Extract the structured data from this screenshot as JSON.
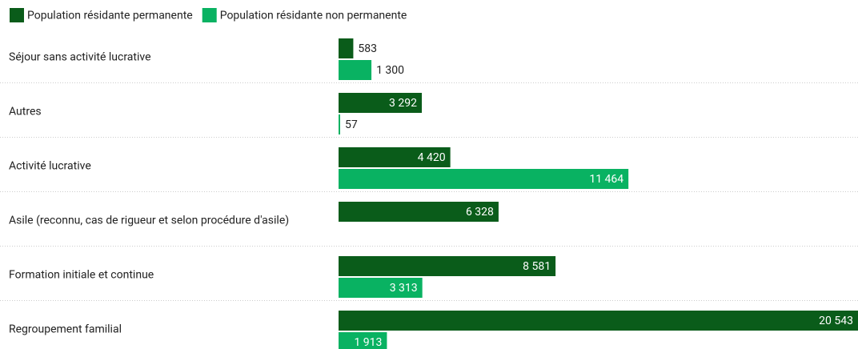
{
  "chart_data": {
    "type": "hbar",
    "categories": [
      "Séjour sans activité lucrative",
      "Autres",
      "Activité lucrative",
      "Asile (reconnu, cas de rigueur et selon procédure d'asile)",
      "Formation initiale et continue",
      "Regroupement familial"
    ],
    "series": [
      {
        "name": "Population résidante permanente",
        "color": "#0a5c1a",
        "values": [
          583,
          3292,
          4420,
          6328,
          8581,
          20543
        ],
        "value_labels": [
          "583",
          "3 292",
          "4 420",
          "6 328",
          "8 581",
          "20 543"
        ]
      },
      {
        "name": "Population résidante non permanente",
        "color": "#09b262",
        "values": [
          1300,
          57,
          11464,
          null,
          3313,
          1913
        ],
        "value_labels": [
          "1 300",
          "57",
          "11 464",
          null,
          "3 313",
          "1 913"
        ]
      }
    ],
    "legend": "top-left"
  }
}
